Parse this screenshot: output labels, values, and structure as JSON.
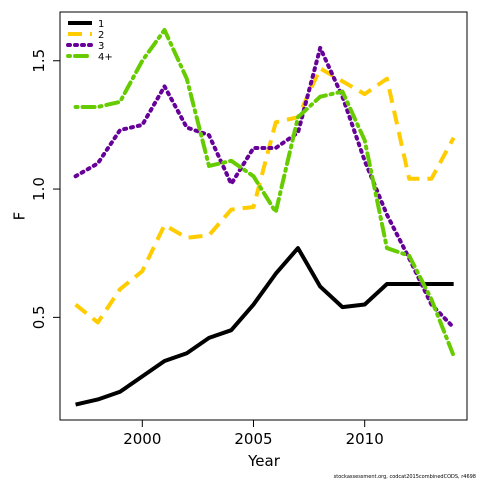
{
  "chart_data": {
    "type": "line",
    "x_label": "Year",
    "y_label": "F",
    "x": [
      1997,
      1998,
      1999,
      2000,
      2001,
      2002,
      2003,
      2004,
      2005,
      2006,
      2007,
      2008,
      2009,
      2010,
      2011,
      2012,
      2013,
      2014
    ],
    "series": [
      {
        "name": "1",
        "color": "#000000",
        "dash": "solid",
        "values": [
          0.16,
          0.18,
          0.21,
          0.27,
          0.33,
          0.36,
          0.42,
          0.45,
          0.55,
          0.67,
          0.77,
          0.62,
          0.54,
          0.55,
          0.63,
          0.63,
          0.63,
          0.63
        ]
      },
      {
        "name": "2",
        "color": "#ffcc00",
        "dash": "dashed",
        "values": [
          0.55,
          0.48,
          0.61,
          0.68,
          0.86,
          0.81,
          0.82,
          0.92,
          0.93,
          1.26,
          1.28,
          1.47,
          1.42,
          1.37,
          1.43,
          1.04,
          1.04,
          1.2
        ]
      },
      {
        "name": "3",
        "color": "#660099",
        "dash": "dotted",
        "values": [
          1.05,
          1.1,
          1.23,
          1.25,
          1.4,
          1.24,
          1.21,
          1.02,
          1.16,
          1.16,
          1.22,
          1.55,
          1.36,
          1.11,
          0.9,
          0.73,
          0.55,
          0.46
        ]
      },
      {
        "name": "4+",
        "color": "#66cc00",
        "dash": "dotdash",
        "values": [
          1.32,
          1.32,
          1.34,
          1.5,
          1.62,
          1.43,
          1.09,
          1.11,
          1.05,
          0.91,
          1.28,
          1.36,
          1.38,
          1.19,
          0.77,
          0.74,
          0.57,
          0.35
        ]
      }
    ],
    "xlim": [
      1996.3,
      2014.6
    ],
    "xticks": [
      2000,
      2005,
      2010
    ],
    "ylim": [
      0.1,
      1.69
    ],
    "yticks": [
      0.5,
      {
        "value": 1.0,
        "label": "1.0"
      },
      1.5
    ],
    "legend": "top-left",
    "footnote": "stockassessment.org, codcat2015combinedCODS, r4698"
  }
}
